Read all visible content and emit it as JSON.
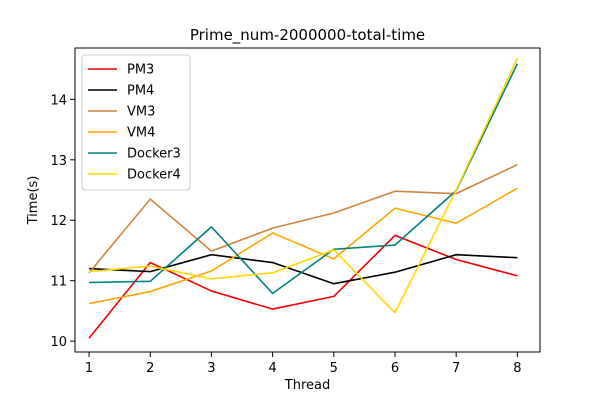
{
  "chart_data": {
    "type": "line",
    "title": "Prime_num-2000000-total-time",
    "xlabel": "Thread",
    "ylabel": "Time(s)",
    "x": [
      1,
      2,
      3,
      4,
      5,
      6,
      7,
      8
    ],
    "xlim": [
      0.77,
      8.37
    ],
    "ylim": [
      9.82,
      14.85
    ],
    "yticks": [
      10,
      11,
      12,
      13,
      14
    ],
    "grid": false,
    "legend": "top-left",
    "series": [
      {
        "name": "PM3",
        "color": "#ee0000",
        "values": [
          10.05,
          11.3,
          10.83,
          10.53,
          10.74,
          11.75,
          11.35,
          11.08
        ]
      },
      {
        "name": "PM4",
        "color": "#000000",
        "values": [
          11.2,
          11.15,
          11.43,
          11.3,
          10.95,
          11.14,
          11.43,
          11.38
        ]
      },
      {
        "name": "VM3",
        "color": "#cd853f",
        "values": [
          11.13,
          12.35,
          11.49,
          11.87,
          12.12,
          12.48,
          12.44,
          12.92
        ]
      },
      {
        "name": "VM4",
        "color": "#ffa500",
        "values": [
          10.62,
          10.82,
          11.16,
          11.79,
          11.36,
          12.2,
          11.95,
          12.53
        ]
      },
      {
        "name": "Docker3",
        "color": "#008080",
        "values": [
          10.97,
          10.99,
          11.89,
          10.79,
          11.52,
          11.59,
          12.49,
          14.59
        ]
      },
      {
        "name": "Docker4",
        "color": "#ffd700",
        "values": [
          11.15,
          11.24,
          11.03,
          11.13,
          11.51,
          10.47,
          12.5,
          14.68
        ]
      }
    ]
  }
}
